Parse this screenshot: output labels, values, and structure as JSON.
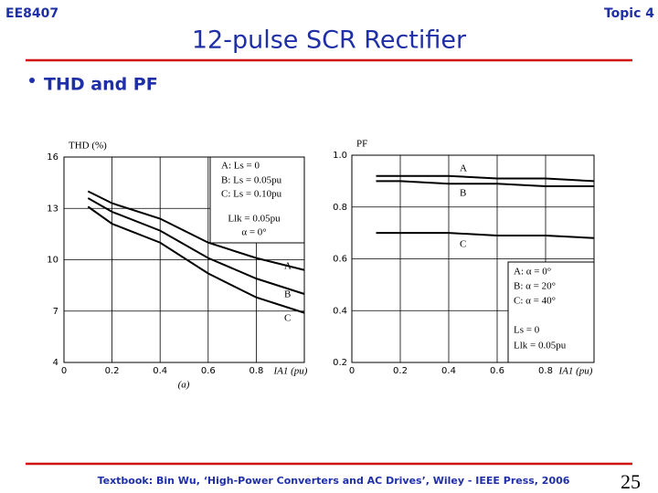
{
  "header": {
    "course": "EE8407",
    "topic": "Topic 4",
    "title": "12-pulse SCR Rectifier",
    "bullet": "THD and PF"
  },
  "footer": {
    "textbook": "Textbook: Bin Wu, ‘High-Power Converters and AC Drives’, Wiley - IEEE Press, 2006",
    "page": "25"
  },
  "chart_data": [
    {
      "type": "line",
      "y_label": "THD (%)",
      "x_label": "IA1 (pu)",
      "caption": "(a)",
      "x": [
        0.1,
        0.2,
        0.4,
        0.6,
        0.8,
        1.0
      ],
      "xlim": [
        0,
        1
      ],
      "xticks": [
        0,
        0.2,
        0.4,
        0.6,
        0.8
      ],
      "ylim": [
        4,
        16
      ],
      "yticks": [
        4,
        7,
        10,
        13,
        16
      ],
      "grid": true,
      "series": [
        {
          "name": "A",
          "color": "#000000",
          "values": [
            14.0,
            13.3,
            12.4,
            11.0,
            10.1,
            9.4
          ]
        },
        {
          "name": "B",
          "color": "#000000",
          "values": [
            13.6,
            12.8,
            11.7,
            10.1,
            8.9,
            8.0
          ]
        },
        {
          "name": "C",
          "color": "#000000",
          "values": [
            13.1,
            12.1,
            11.0,
            9.2,
            7.8,
            6.9
          ]
        }
      ],
      "notes": [
        "A: Ls = 0",
        "B: Ls = 0.05pu",
        "C: Ls = 0.10pu",
        "Llk = 0.05pu",
        "α = 0°"
      ]
    },
    {
      "type": "line",
      "y_label": "PF",
      "x_label": "IA1 (pu)",
      "x": [
        0.1,
        0.2,
        0.4,
        0.6,
        0.8,
        1.0
      ],
      "xlim": [
        0,
        1
      ],
      "xticks": [
        0,
        0.2,
        0.4,
        0.6,
        0.8
      ],
      "ylim": [
        0.2,
        1.0
      ],
      "yticks": [
        0.2,
        0.4,
        0.6,
        0.8,
        {
          "value": 1.0,
          "label": "1.0"
        }
      ],
      "grid": true,
      "series": [
        {
          "name": "A",
          "color": "#000000",
          "values": [
            0.92,
            0.92,
            0.92,
            0.91,
            0.91,
            0.9
          ]
        },
        {
          "name": "B",
          "color": "#000000",
          "values": [
            0.9,
            0.9,
            0.89,
            0.89,
            0.88,
            0.88
          ]
        },
        {
          "name": "C",
          "color": "#000000",
          "values": [
            0.7,
            0.7,
            0.7,
            0.69,
            0.69,
            0.68
          ]
        }
      ],
      "notes": [
        "A: α = 0°",
        "B: α = 20°",
        "C: α = 40°",
        "Ls = 0",
        "Llk = 0.05pu"
      ]
    }
  ]
}
